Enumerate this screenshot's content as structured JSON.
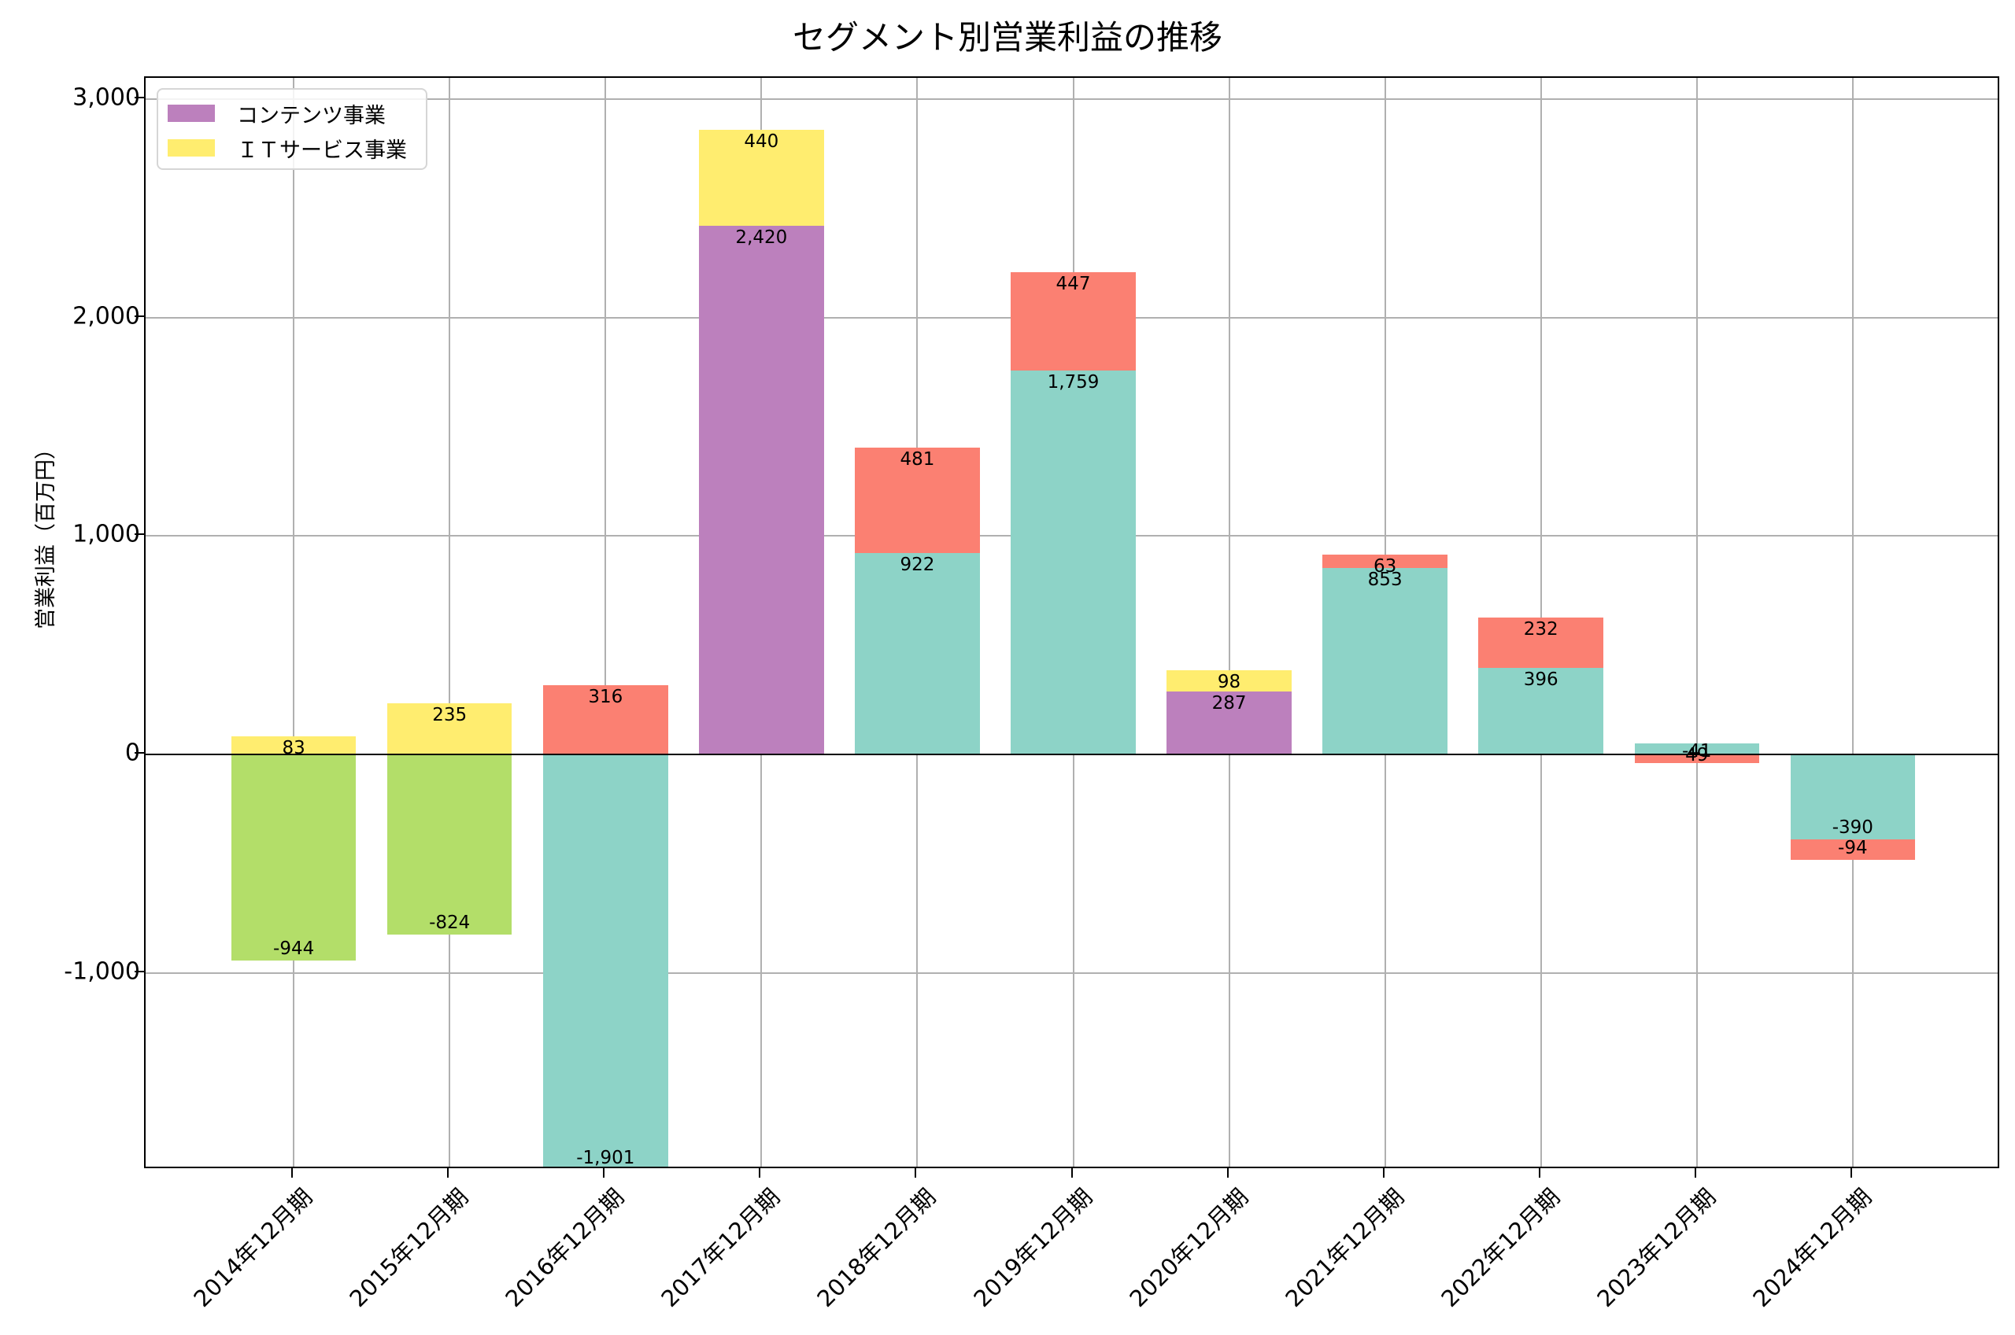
{
  "chart_data": {
    "type": "bar",
    "stacked": true,
    "title": "セグメント別営業利益の推移",
    "xlabel": "",
    "ylabel": "営業利益（百万円）",
    "ylim": [
      -1901,
      3097
    ],
    "yticks": [
      -1000,
      0,
      1000,
      2000,
      3000
    ],
    "ytick_labels": [
      "-1,000",
      "0",
      "1,000",
      "2,000",
      "3,000"
    ],
    "grid": true,
    "legend_position": "upper left",
    "legend": [
      {
        "label": "コンテンツ事業",
        "color": "#BC80BD"
      },
      {
        "label": "ＩＴサービス事業",
        "color": "#FFED6F"
      }
    ],
    "categories": [
      "2014年12月期",
      "2015年12月期",
      "2016年12月期",
      "2017年12月期",
      "2018年12月期",
      "2019年12月期",
      "2020年12月期",
      "2021年12月期",
      "2022年12月期",
      "2023年12月期",
      "2024年12月期"
    ],
    "segments": [
      [
        {
          "value": -944,
          "color": "#B3DE69",
          "label": "-944"
        },
        {
          "value": 83,
          "color": "#FFED6F",
          "label": "83"
        }
      ],
      [
        {
          "value": -824,
          "color": "#B3DE69",
          "label": "-824"
        },
        {
          "value": 235,
          "color": "#FFED6F",
          "label": "235"
        }
      ],
      [
        {
          "value": -1901,
          "color": "#8DD3C7",
          "label": "-1,901"
        },
        {
          "value": 316,
          "color": "#FB8072",
          "label": "316"
        }
      ],
      [
        {
          "value": 2420,
          "color": "#BC80BD",
          "label": "2,420"
        },
        {
          "value": 440,
          "color": "#FFED6F",
          "label": "440"
        }
      ],
      [
        {
          "value": 922,
          "color": "#8DD3C7",
          "label": "922"
        },
        {
          "value": 481,
          "color": "#FB8072",
          "label": "481"
        }
      ],
      [
        {
          "value": 1759,
          "color": "#8DD3C7",
          "label": "1,759"
        },
        {
          "value": 447,
          "color": "#FB8072",
          "label": "447"
        }
      ],
      [
        {
          "value": 287,
          "color": "#BC80BD",
          "label": "287"
        },
        {
          "value": 98,
          "color": "#FFED6F",
          "label": "98"
        }
      ],
      [
        {
          "value": 853,
          "color": "#8DD3C7",
          "label": "853"
        },
        {
          "value": 63,
          "color": "#FB8072",
          "label": "63"
        }
      ],
      [
        {
          "value": 396,
          "color": "#8DD3C7",
          "label": "396"
        },
        {
          "value": 232,
          "color": "#FB8072",
          "label": "232"
        }
      ],
      [
        {
          "value": 49,
          "color": "#8DD3C7",
          "label": "49"
        },
        {
          "value": -41,
          "color": "#FB8072",
          "label": "-41"
        }
      ],
      [
        {
          "value": -390,
          "color": "#8DD3C7",
          "label": "-390"
        },
        {
          "value": -94,
          "color": "#FB8072",
          "label": "-94"
        }
      ]
    ]
  }
}
